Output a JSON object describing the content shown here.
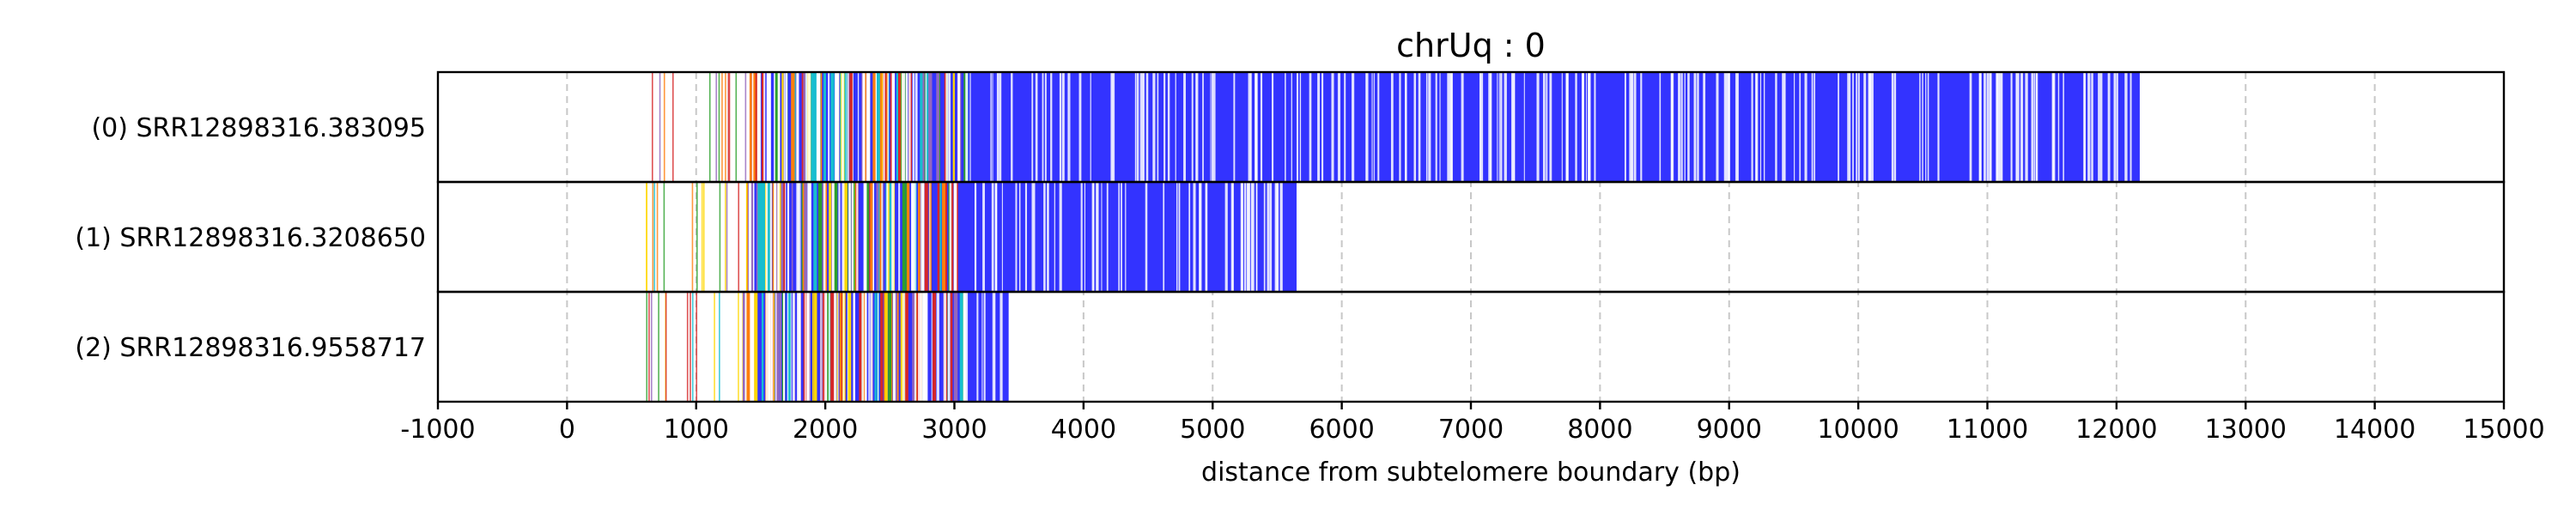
{
  "chart_data": {
    "type": "bar",
    "title": "chrUq : 0",
    "xlabel": "distance from subtelomere boundary (bp)",
    "ylabel": "",
    "xlim": [
      -1000,
      15000
    ],
    "xticks": [
      -1000,
      0,
      1000,
      2000,
      3000,
      4000,
      5000,
      6000,
      7000,
      8000,
      9000,
      10000,
      11000,
      12000,
      13000,
      14000,
      15000
    ],
    "xtick_labels": [
      "-1000",
      "0",
      "1000",
      "2000",
      "3000",
      "4000",
      "5000",
      "6000",
      "7000",
      "8000",
      "9000",
      "10000",
      "11000",
      "12000",
      "13000",
      "14000",
      "15000"
    ],
    "grid": "vertical dashed",
    "colors": {
      "dominant": "#3333ff",
      "accents": [
        "#ffd700",
        "#2ca02c",
        "#d62728",
        "#17becf",
        "#ff7f0e",
        "#9467bd",
        "#ffffff"
      ]
    },
    "reads": [
      {
        "label": "(0) SRR12898316.383095",
        "start": 550,
        "dense_start": 1500,
        "end": 12180
      },
      {
        "label": "(1) SRR12898316.3208650",
        "start": 600,
        "dense_start": 1450,
        "end": 5650
      },
      {
        "label": "(2) SRR12898316.9558717",
        "start": 600,
        "dense_start": 1450,
        "end": 3420
      }
    ]
  }
}
